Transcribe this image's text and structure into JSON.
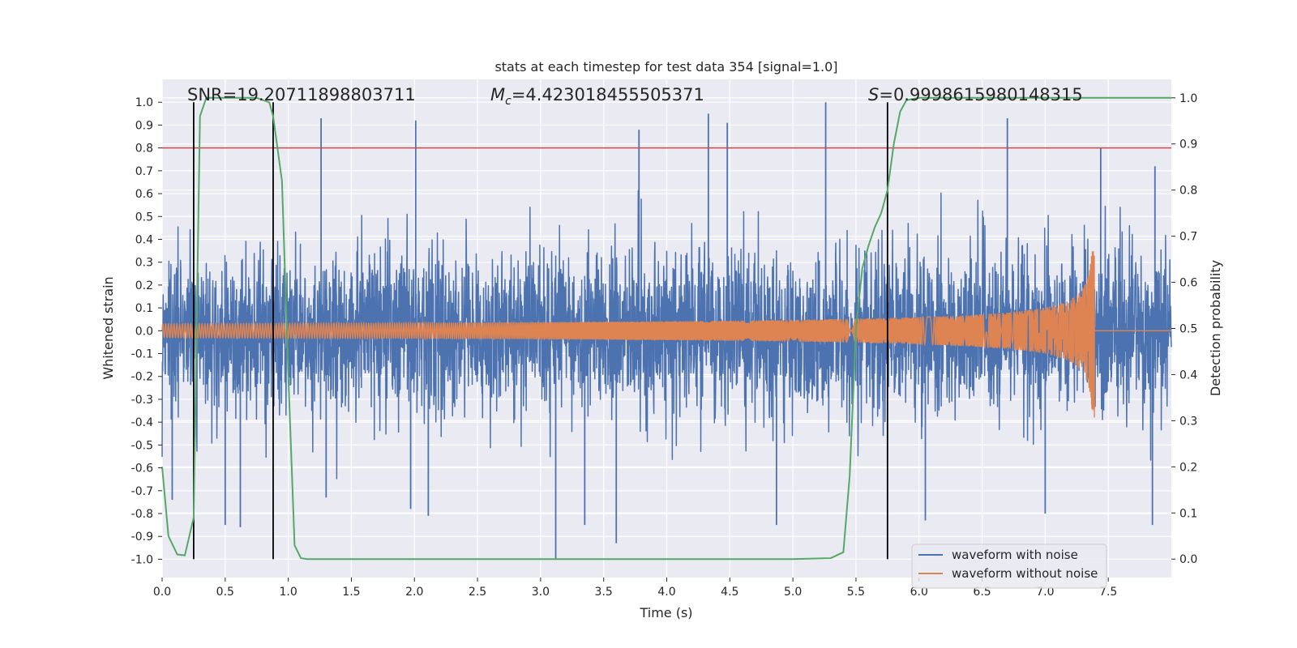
{
  "chart_data": {
    "type": "line",
    "title": "stats at each timestep for test data 354 [signal=1.0]",
    "xlabel": "Time (s)",
    "ylabel_left": "Whitened strain",
    "ylabel_right": "Detection probability",
    "xlim": [
      0.0,
      8.0
    ],
    "ylim_left": [
      -1.08,
      1.1
    ],
    "ylim_right": [
      -0.04,
      1.04
    ],
    "x_ticks": [
      "0.0",
      "0.5",
      "1.0",
      "1.5",
      "2.0",
      "2.5",
      "3.0",
      "3.5",
      "4.0",
      "4.5",
      "5.0",
      "5.5",
      "6.0",
      "6.5",
      "7.0",
      "7.5"
    ],
    "y_ticks_left": [
      "1.0",
      "0.9",
      "0.8",
      "0.7",
      "0.6",
      "0.5",
      "0.4",
      "0.3",
      "0.2",
      "0.1",
      "0.0",
      "-0.1",
      "-0.2",
      "-0.3",
      "-0.4",
      "-0.5",
      "-0.6",
      "-0.7",
      "-0.8",
      "-0.9",
      "-1.0"
    ],
    "y_ticks_right": [
      "1.0",
      "0.9",
      "0.8",
      "0.7",
      "0.6",
      "0.5",
      "0.4",
      "0.3",
      "0.2",
      "0.1",
      "0.0"
    ],
    "grid": true,
    "legend_position": "lower-right",
    "annotations": {
      "snr_text": "SNR=19.20711898803711",
      "mc_symbol": "M",
      "mc_subscript": "c",
      "mc_value": "=4.423018455505371",
      "s_symbol": "S",
      "s_value": "=0.9998615980148315"
    },
    "threshold": {
      "value": 0.8,
      "axis": "left",
      "color": "#c44e52"
    },
    "vertical_lines": [
      0.25,
      0.88,
      5.75
    ],
    "series": [
      {
        "name": "waveform with noise",
        "color": "#4c72b0",
        "axis": "left",
        "kind": "noise",
        "x_range": [
          0.0,
          8.0
        ],
        "typical_amplitude": 0.35,
        "peak_positive": [
          [
            1.26,
            0.93
          ],
          [
            2.01,
            0.92
          ],
          [
            3.78,
            0.88
          ],
          [
            4.33,
            0.95
          ],
          [
            4.48,
            0.91
          ],
          [
            5.26,
            1.0
          ],
          [
            6.7,
            0.93
          ],
          [
            7.44,
            0.8
          ],
          [
            7.87,
            0.72
          ]
        ],
        "peak_negative": [
          [
            0.08,
            -0.74
          ],
          [
            0.5,
            -0.85
          ],
          [
            0.62,
            -0.86
          ],
          [
            1.3,
            -0.73
          ],
          [
            1.97,
            -0.78
          ],
          [
            2.11,
            -0.81
          ],
          [
            3.12,
            -1.0
          ],
          [
            3.35,
            -0.85
          ],
          [
            3.6,
            -0.93
          ],
          [
            4.87,
            -0.85
          ],
          [
            6.05,
            -0.83
          ],
          [
            7.0,
            -0.8
          ],
          [
            7.85,
            -0.85
          ]
        ]
      },
      {
        "name": "waveform without noise",
        "color": "#dd8452",
        "axis": "left",
        "kind": "chirp",
        "start_time": 0.0,
        "merger_time": 7.39,
        "start_amplitude": 0.03,
        "peak_amplitude": 0.35
      },
      {
        "name": "detection probability",
        "color": "#55a868",
        "axis": "right",
        "kind": "line",
        "x": [
          0.0,
          0.05,
          0.12,
          0.18,
          0.25,
          0.3,
          0.35,
          0.4,
          0.5,
          0.75,
          0.85,
          0.88,
          0.95,
          1.0,
          1.05,
          1.1,
          1.15,
          1.3,
          1.5,
          2.0,
          3.0,
          4.0,
          5.0,
          5.3,
          5.4,
          5.45,
          5.5,
          5.55,
          5.6,
          5.65,
          5.7,
          5.75,
          5.8,
          5.85,
          5.9,
          6.0,
          6.5,
          7.0,
          7.5,
          8.0
        ],
        "y": [
          0.2,
          0.05,
          0.01,
          0.008,
          0.09,
          0.96,
          1.0,
          1.0,
          1.0,
          1.0,
          0.99,
          0.96,
          0.82,
          0.4,
          0.03,
          0.002,
          0.0,
          0.0,
          0.0,
          0.0,
          0.0,
          0.0,
          0.0,
          0.002,
          0.015,
          0.18,
          0.5,
          0.63,
          0.68,
          0.72,
          0.75,
          0.8,
          0.9,
          0.97,
          0.995,
          1.0,
          1.0,
          1.0,
          1.0,
          1.0
        ]
      }
    ]
  }
}
